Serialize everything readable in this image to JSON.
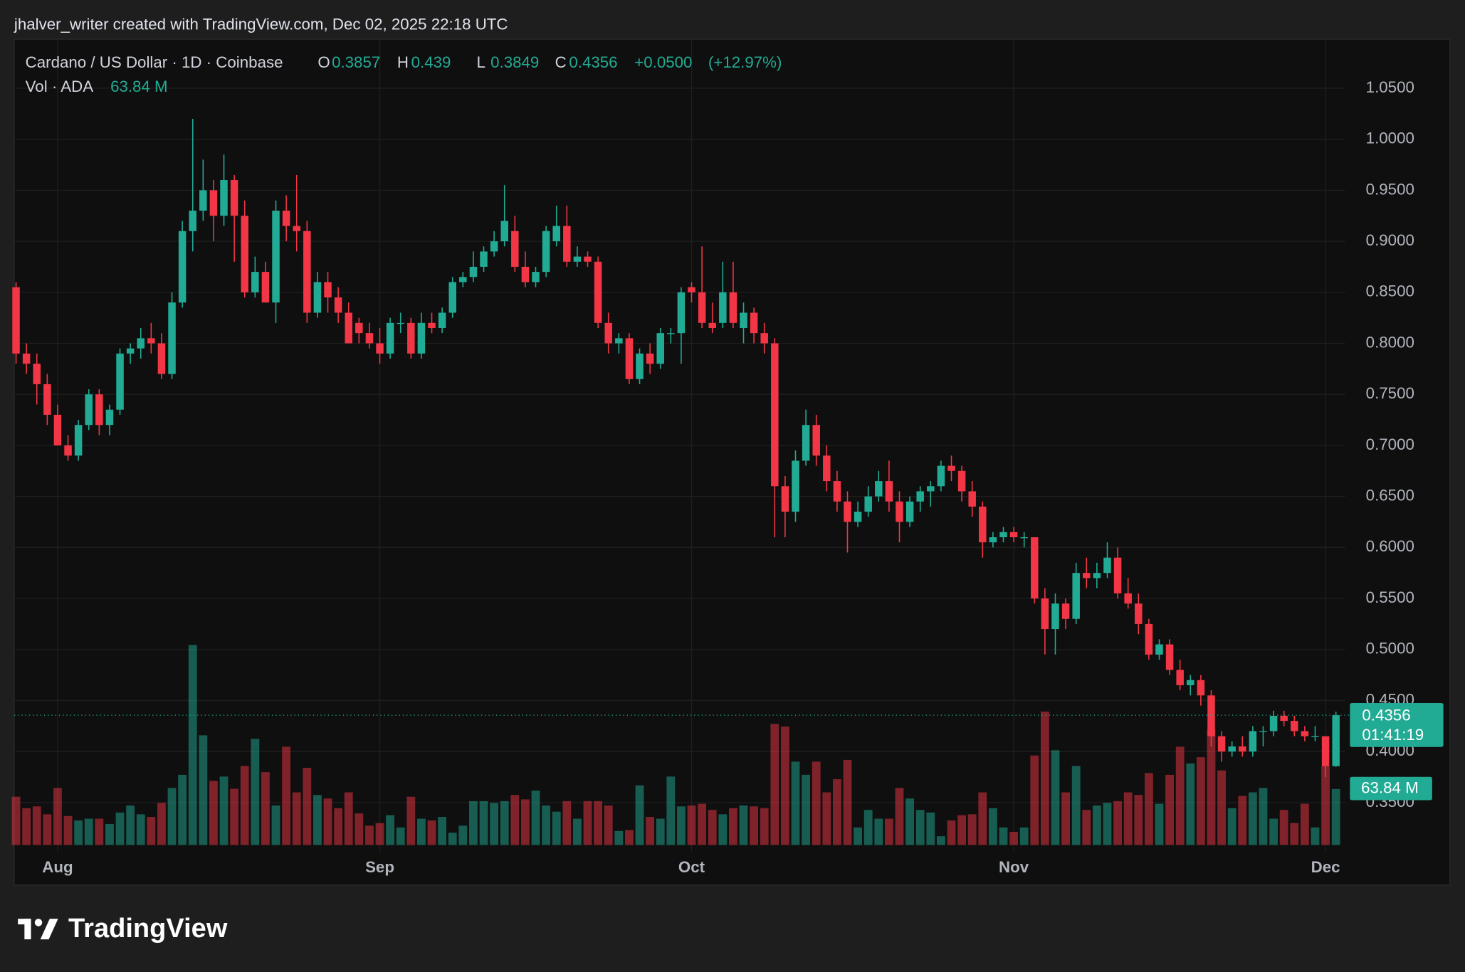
{
  "credit": "jhalver_writer created with TradingView.com, Dec 02, 2025 22:18 UTC",
  "brand": "TradingView",
  "chart_data": {
    "type": "candlestick",
    "series_name": "Cardano / US Dollar · 1D · Coinbase",
    "ohlc_legend": [
      {
        "label": "O",
        "value": 0.3857
      },
      {
        "label": "H",
        "value": 0.439
      },
      {
        "label": "L",
        "value": 0.3849
      },
      {
        "label": "C",
        "value": 0.4356
      }
    ],
    "change": {
      "value": 0.05,
      "label": "+0.0500"
    },
    "change_pct": {
      "value": 12.97,
      "label": "(+12.97%)"
    },
    "up_color": "#22ab94",
    "down_color": "#f23645",
    "ylim": [
      0.302,
      1.098
    ],
    "yticks": [
      {
        "value": 0.35,
        "label": "0.3500"
      },
      {
        "value": 0.4,
        "label": "0.4000"
      },
      {
        "value": 0.45,
        "label": "0.4500"
      },
      {
        "value": 0.5,
        "label": "0.5000"
      },
      {
        "value": 0.55,
        "label": "0.5500"
      },
      {
        "value": 0.6,
        "label": "0.6000"
      },
      {
        "value": 0.65,
        "label": "0.6500"
      },
      {
        "value": 0.7,
        "label": "0.7000"
      },
      {
        "value": 0.75,
        "label": "0.7500"
      },
      {
        "value": 0.8,
        "label": "0.8000"
      },
      {
        "value": 0.85,
        "label": "0.8500"
      },
      {
        "value": 0.9,
        "label": "0.9000"
      },
      {
        "value": 0.95,
        "label": "0.9500"
      },
      {
        "value": 1.0,
        "label": "1.0000"
      },
      {
        "value": 1.05,
        "label": "1.0500"
      }
    ],
    "xlim": [
      0,
      127
    ],
    "xticks": [
      {
        "value": 4,
        "label": "Aug"
      },
      {
        "value": 35,
        "label": "Sep"
      },
      {
        "value": 65,
        "label": "Oct"
      },
      {
        "value": 96,
        "label": "Nov"
      },
      {
        "value": 126,
        "label": "Dec"
      }
    ],
    "grid": true,
    "last_price": 0.4356,
    "countdown": "01:41:19",
    "ohlc": [
      [
        0.855,
        0.86,
        0.78,
        0.79
      ],
      [
        0.79,
        0.8,
        0.77,
        0.78
      ],
      [
        0.78,
        0.79,
        0.74,
        0.76
      ],
      [
        0.76,
        0.77,
        0.72,
        0.73
      ],
      [
        0.73,
        0.74,
        0.7,
        0.7
      ],
      [
        0.7,
        0.71,
        0.685,
        0.69
      ],
      [
        0.69,
        0.725,
        0.685,
        0.72
      ],
      [
        0.72,
        0.755,
        0.715,
        0.75
      ],
      [
        0.75,
        0.755,
        0.71,
        0.72
      ],
      [
        0.72,
        0.74,
        0.71,
        0.735
      ],
      [
        0.735,
        0.795,
        0.73,
        0.79
      ],
      [
        0.79,
        0.8,
        0.78,
        0.795
      ],
      [
        0.795,
        0.815,
        0.785,
        0.805
      ],
      [
        0.805,
        0.82,
        0.79,
        0.8
      ],
      [
        0.8,
        0.81,
        0.765,
        0.77
      ],
      [
        0.77,
        0.85,
        0.765,
        0.84
      ],
      [
        0.84,
        0.92,
        0.835,
        0.91
      ],
      [
        0.91,
        1.02,
        0.89,
        0.93
      ],
      [
        0.93,
        0.98,
        0.92,
        0.95
      ],
      [
        0.95,
        0.96,
        0.9,
        0.925
      ],
      [
        0.925,
        0.985,
        0.915,
        0.96
      ],
      [
        0.96,
        0.965,
        0.88,
        0.925
      ],
      [
        0.925,
        0.94,
        0.845,
        0.85
      ],
      [
        0.85,
        0.885,
        0.845,
        0.87
      ],
      [
        0.87,
        0.88,
        0.84,
        0.84
      ],
      [
        0.84,
        0.94,
        0.82,
        0.93
      ],
      [
        0.93,
        0.945,
        0.9,
        0.915
      ],
      [
        0.915,
        0.965,
        0.89,
        0.91
      ],
      [
        0.91,
        0.92,
        0.82,
        0.83
      ],
      [
        0.83,
        0.87,
        0.825,
        0.86
      ],
      [
        0.86,
        0.87,
        0.83,
        0.845
      ],
      [
        0.845,
        0.855,
        0.82,
        0.83
      ],
      [
        0.83,
        0.84,
        0.8,
        0.8
      ],
      [
        0.82,
        0.825,
        0.8,
        0.81
      ],
      [
        0.81,
        0.82,
        0.795,
        0.8
      ],
      [
        0.8,
        0.815,
        0.78,
        0.79
      ],
      [
        0.79,
        0.825,
        0.785,
        0.82
      ],
      [
        0.82,
        0.83,
        0.81,
        0.82
      ],
      [
        0.82,
        0.825,
        0.785,
        0.79
      ],
      [
        0.79,
        0.83,
        0.785,
        0.82
      ],
      [
        0.82,
        0.83,
        0.81,
        0.815
      ],
      [
        0.815,
        0.835,
        0.81,
        0.83
      ],
      [
        0.83,
        0.865,
        0.825,
        0.86
      ],
      [
        0.86,
        0.87,
        0.855,
        0.865
      ],
      [
        0.865,
        0.89,
        0.86,
        0.875
      ],
      [
        0.875,
        0.895,
        0.87,
        0.89
      ],
      [
        0.89,
        0.91,
        0.885,
        0.9
      ],
      [
        0.9,
        0.955,
        0.895,
        0.92
      ],
      [
        0.91,
        0.925,
        0.87,
        0.875
      ],
      [
        0.875,
        0.89,
        0.855,
        0.86
      ],
      [
        0.86,
        0.875,
        0.855,
        0.87
      ],
      [
        0.87,
        0.915,
        0.865,
        0.91
      ],
      [
        0.9,
        0.935,
        0.895,
        0.915
      ],
      [
        0.915,
        0.935,
        0.875,
        0.88
      ],
      [
        0.88,
        0.895,
        0.875,
        0.885
      ],
      [
        0.885,
        0.89,
        0.875,
        0.88
      ],
      [
        0.88,
        0.885,
        0.815,
        0.82
      ],
      [
        0.82,
        0.83,
        0.79,
        0.8
      ],
      [
        0.8,
        0.81,
        0.79,
        0.805
      ],
      [
        0.805,
        0.81,
        0.76,
        0.765
      ],
      [
        0.765,
        0.795,
        0.76,
        0.79
      ],
      [
        0.79,
        0.8,
        0.77,
        0.78
      ],
      [
        0.78,
        0.815,
        0.775,
        0.81
      ],
      [
        0.81,
        0.815,
        0.8,
        0.81
      ],
      [
        0.81,
        0.855,
        0.78,
        0.85
      ],
      [
        0.855,
        0.86,
        0.84,
        0.85
      ],
      [
        0.85,
        0.895,
        0.815,
        0.82
      ],
      [
        0.82,
        0.84,
        0.81,
        0.815
      ],
      [
        0.82,
        0.88,
        0.815,
        0.85
      ],
      [
        0.85,
        0.88,
        0.815,
        0.82
      ],
      [
        0.815,
        0.84,
        0.8,
        0.83
      ],
      [
        0.83,
        0.835,
        0.8,
        0.81
      ],
      [
        0.81,
        0.82,
        0.79,
        0.8
      ],
      [
        0.8,
        0.805,
        0.61,
        0.66
      ],
      [
        0.66,
        0.67,
        0.61,
        0.635
      ],
      [
        0.635,
        0.695,
        0.625,
        0.685
      ],
      [
        0.685,
        0.735,
        0.68,
        0.72
      ],
      [
        0.72,
        0.73,
        0.68,
        0.69
      ],
      [
        0.69,
        0.7,
        0.655,
        0.665
      ],
      [
        0.665,
        0.675,
        0.635,
        0.645
      ],
      [
        0.645,
        0.655,
        0.595,
        0.625
      ],
      [
        0.625,
        0.645,
        0.62,
        0.635
      ],
      [
        0.635,
        0.66,
        0.63,
        0.65
      ],
      [
        0.65,
        0.675,
        0.645,
        0.665
      ],
      [
        0.665,
        0.685,
        0.635,
        0.645
      ],
      [
        0.645,
        0.655,
        0.605,
        0.625
      ],
      [
        0.625,
        0.65,
        0.62,
        0.645
      ],
      [
        0.645,
        0.66,
        0.635,
        0.655
      ],
      [
        0.655,
        0.665,
        0.64,
        0.66
      ],
      [
        0.66,
        0.685,
        0.655,
        0.68
      ],
      [
        0.68,
        0.69,
        0.665,
        0.675
      ],
      [
        0.675,
        0.68,
        0.645,
        0.655
      ],
      [
        0.655,
        0.665,
        0.63,
        0.64
      ],
      [
        0.64,
        0.645,
        0.59,
        0.605
      ],
      [
        0.605,
        0.615,
        0.6,
        0.61
      ],
      [
        0.61,
        0.62,
        0.605,
        0.615
      ],
      [
        0.615,
        0.62,
        0.605,
        0.61
      ],
      [
        0.61,
        0.615,
        0.6,
        0.61
      ],
      [
        0.61,
        0.61,
        0.545,
        0.55
      ],
      [
        0.55,
        0.56,
        0.495,
        0.52
      ],
      [
        0.52,
        0.555,
        0.495,
        0.545
      ],
      [
        0.545,
        0.55,
        0.52,
        0.53
      ],
      [
        0.53,
        0.585,
        0.525,
        0.575
      ],
      [
        0.575,
        0.59,
        0.56,
        0.57
      ],
      [
        0.57,
        0.585,
        0.56,
        0.575
      ],
      [
        0.575,
        0.605,
        0.57,
        0.59
      ],
      [
        0.59,
        0.6,
        0.55,
        0.555
      ],
      [
        0.555,
        0.57,
        0.54,
        0.545
      ],
      [
        0.545,
        0.555,
        0.515,
        0.525
      ],
      [
        0.525,
        0.53,
        0.49,
        0.495
      ],
      [
        0.495,
        0.51,
        0.49,
        0.505
      ],
      [
        0.505,
        0.51,
        0.475,
        0.48
      ],
      [
        0.48,
        0.49,
        0.46,
        0.465
      ],
      [
        0.465,
        0.475,
        0.455,
        0.47
      ],
      [
        0.47,
        0.475,
        0.445,
        0.455
      ],
      [
        0.455,
        0.46,
        0.405,
        0.415
      ],
      [
        0.415,
        0.42,
        0.39,
        0.4
      ],
      [
        0.4,
        0.41,
        0.395,
        0.405
      ],
      [
        0.405,
        0.415,
        0.395,
        0.4
      ],
      [
        0.4,
        0.425,
        0.395,
        0.42
      ],
      [
        0.42,
        0.425,
        0.405,
        0.42
      ],
      [
        0.42,
        0.44,
        0.415,
        0.435
      ],
      [
        0.435,
        0.44,
        0.425,
        0.43
      ],
      [
        0.43,
        0.435,
        0.415,
        0.42
      ],
      [
        0.42,
        0.425,
        0.41,
        0.415
      ],
      [
        0.415,
        0.425,
        0.41,
        0.415
      ],
      [
        0.415,
        0.415,
        0.375,
        0.3857
      ],
      [
        0.3857,
        0.439,
        0.3849,
        0.4356
      ]
    ],
    "volume": {
      "label": "Vol · ADA",
      "ylim": [
        0,
        250
      ],
      "last_label": "63.84 M",
      "values": [
        55,
        42,
        44,
        35,
        65,
        33,
        28,
        30,
        30,
        24,
        37,
        45,
        35,
        32,
        48,
        65,
        80,
        228,
        125,
        73,
        78,
        64,
        90,
        121,
        83,
        45,
        112,
        60,
        88,
        57,
        53,
        42,
        60,
        36,
        22,
        25,
        34,
        20,
        55,
        30,
        28,
        32,
        14,
        22,
        50,
        50,
        48,
        50,
        57,
        52,
        62,
        45,
        38,
        50,
        30,
        50,
        50,
        45,
        16,
        17,
        68,
        32,
        30,
        78,
        44,
        45,
        47,
        40,
        35,
        42,
        45,
        44,
        42,
        138,
        135,
        95,
        80,
        95,
        60,
        75,
        97,
        20,
        40,
        30,
        30,
        65,
        53,
        40,
        37,
        10,
        28,
        34,
        35,
        60,
        42,
        20,
        15,
        20,
        102,
        152,
        108,
        60,
        90,
        40,
        45,
        48,
        50,
        60,
        57,
        82,
        47,
        80,
        112,
        93,
        100,
        132,
        85,
        42,
        56,
        60,
        65,
        30,
        40,
        25,
        47,
        20,
        90,
        63.84
      ]
    }
  }
}
